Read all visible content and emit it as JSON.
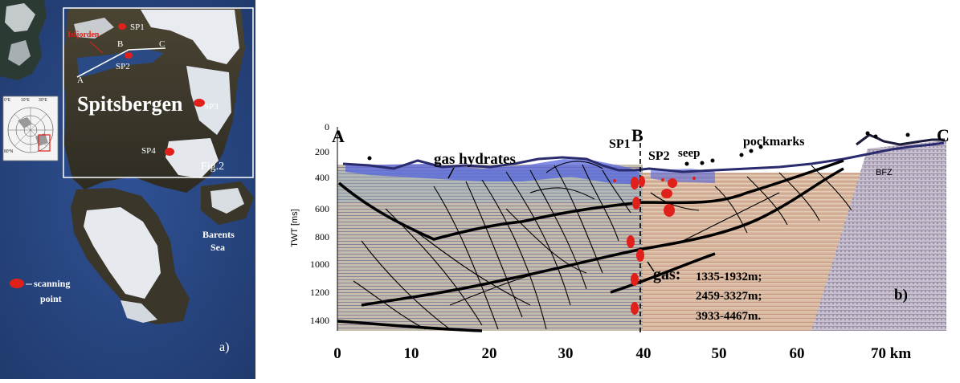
{
  "map_panel": {
    "fjord_label": "Isfjorden",
    "island_label": "Spitsbergen",
    "sea_label_line1": "Barents",
    "sea_label_line2": "Sea",
    "profile_points": [
      "A",
      "B",
      "C"
    ],
    "scan_points": [
      "SP1",
      "SP2",
      "SP3",
      "SP4"
    ],
    "figure_ref": "Fig.2",
    "legend_label_line1": "scanning",
    "legend_label_line2": "point",
    "panel_letter": "a)",
    "inset_lat_label": "80°N",
    "inset_lon_labels": [
      "0°E",
      "10°E",
      "30°E"
    ],
    "colors": {
      "sea": "#2b4a86",
      "land": "#3e3a2c",
      "snow": "#f2f4f6",
      "marker": "#e0201a",
      "frame": "#ffffff"
    }
  },
  "profile_panel": {
    "endpoints": [
      "A",
      "B",
      "C"
    ],
    "ylabel": "TWT [ms]",
    "yticks": [
      "0",
      "200",
      "400",
      "600",
      "800",
      "1000",
      "1200",
      "1400"
    ],
    "xticks": [
      "0",
      "10",
      "20",
      "30",
      "40",
      "50",
      "60",
      "70 km"
    ],
    "labels": {
      "gas_hydrates": "gas hydrates",
      "sp1": "SP1",
      "sp2": "SP2",
      "seep": "seep",
      "pockmarks": "pockmarks",
      "bfz": "BFZ",
      "gas": "gas:",
      "depth1": "1335-1932m;",
      "depth2": "2459-3327m;",
      "depth3": "3933-4467m.",
      "panel_letter": "b)"
    },
    "colors": {
      "seafloor": "#2a2a6e",
      "hydrate_zone": "#5566dd",
      "marker": "#e0201a",
      "faults": "#000000"
    }
  }
}
